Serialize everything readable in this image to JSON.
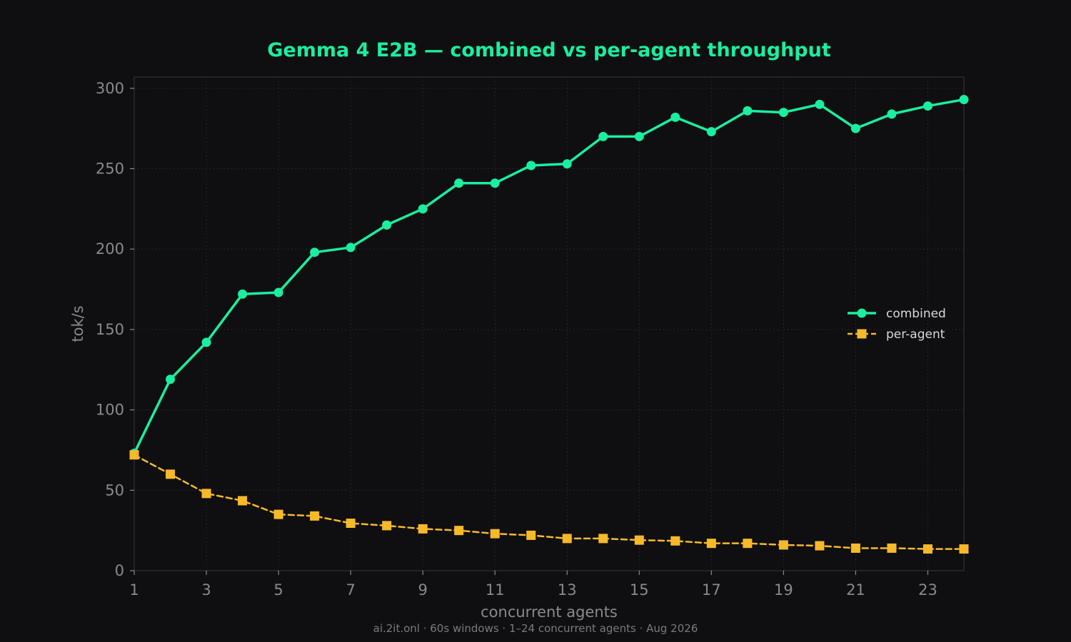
{
  "colors": {
    "background": "#0f0f11",
    "plot_background": "#0f0f11",
    "spine": "#2a2a2e",
    "grid": "#26262a",
    "tick_text": "#8a8a8e",
    "title": "#1aeea0",
    "combined": "#1aeea0",
    "per_agent": "#f7b92a",
    "legend_text": "#d8d8d8",
    "footer_text": "#7a7a7e"
  },
  "chart_data": {
    "type": "line",
    "title": "Gemma 4 E2B — combined vs per-agent throughput",
    "xlabel": "concurrent agents",
    "ylabel": "tok/s",
    "footer": "ai.2it.onl · 60s windows · 1–24 concurrent agents · Aug 2026",
    "xlim": [
      1,
      24
    ],
    "ylim": [
      0,
      307
    ],
    "x_ticks": [
      "1",
      "3",
      "5",
      "7",
      "9",
      "11",
      "13",
      "15",
      "17",
      "19",
      "21",
      "23"
    ],
    "y_ticks": [
      "0",
      "50",
      "100",
      "150",
      "200",
      "250",
      "300"
    ],
    "grid": true,
    "legend_position": "center-right",
    "x": [
      1,
      2,
      3,
      4,
      5,
      6,
      7,
      8,
      9,
      10,
      11,
      12,
      13,
      14,
      15,
      16,
      17,
      18,
      19,
      20,
      21,
      22,
      23,
      24
    ],
    "series": [
      {
        "name": "combined",
        "marker": "circle",
        "linestyle": "solid",
        "values": [
          73,
          119,
          142,
          172,
          173,
          198,
          201,
          215,
          225,
          241,
          241,
          252,
          253,
          270,
          270,
          282,
          273,
          286,
          285,
          290,
          275,
          284,
          289,
          293
        ]
      },
      {
        "name": "per-agent",
        "marker": "square",
        "linestyle": "dashed",
        "values": [
          72,
          60,
          48,
          43.5,
          35,
          34,
          29.5,
          28,
          26,
          25,
          23,
          22,
          20,
          20,
          19,
          18.5,
          17,
          17,
          16,
          15.5,
          14,
          14,
          13.5,
          13.5
        ]
      }
    ]
  }
}
